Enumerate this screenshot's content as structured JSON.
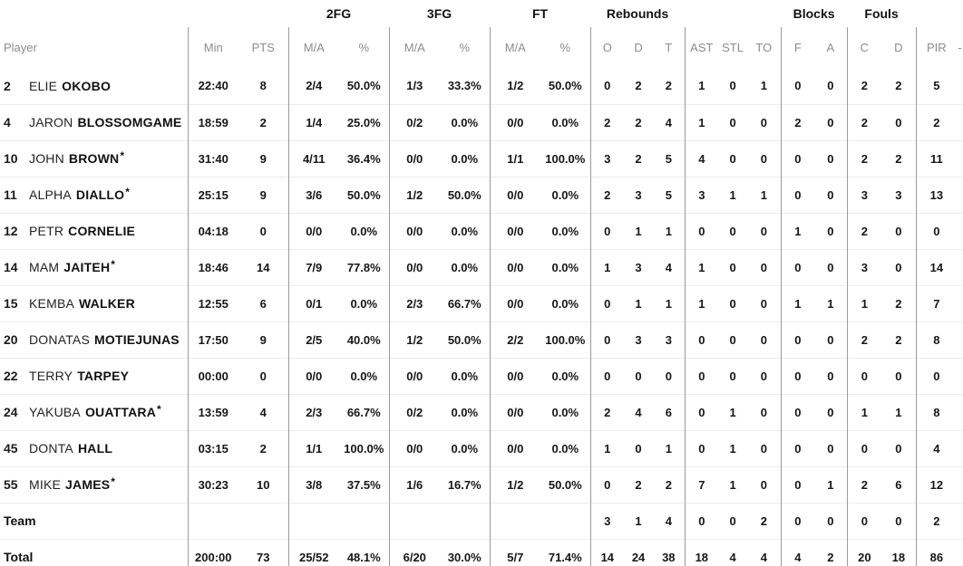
{
  "colors": {
    "background": "#ffffff",
    "group_header_text": "#131313",
    "column_header_text": "#8c8c8c",
    "data_text": "#161616",
    "section_divider": "#9b9b9b",
    "row_divider": "#ececec"
  },
  "table": {
    "group_headers": {
      "fg2": "2FG",
      "fg3": "3FG",
      "ft": "FT",
      "rebounds": "Rebounds",
      "blocks": "Blocks",
      "fouls": "Fouls"
    },
    "column_headers": {
      "player": "Player",
      "min": "Min",
      "pts": "PTS",
      "ma": "M/A",
      "pct": "%",
      "reb_o": "O",
      "reb_d": "D",
      "reb_t": "T",
      "ast": "AST",
      "stl": "STL",
      "to": "TO",
      "blk_f": "F",
      "blk_a": "A",
      "foul_c": "C",
      "foul_d": "D",
      "pir": "PIR",
      "overflow": "-"
    },
    "starter_mark": "*",
    "rows": [
      {
        "type": "player",
        "number": "2",
        "first": "ELIE",
        "last": "OKOBO",
        "starter": false,
        "min": "22:40",
        "pts": "8",
        "fg2_ma": "2/4",
        "fg2_pct": "50.0%",
        "fg3_ma": "1/3",
        "fg3_pct": "33.3%",
        "ft_ma": "1/2",
        "ft_pct": "50.0%",
        "reb_o": "0",
        "reb_d": "2",
        "reb_t": "2",
        "ast": "1",
        "stl": "0",
        "to": "1",
        "blk_f": "0",
        "blk_a": "0",
        "foul_c": "2",
        "foul_d": "2",
        "pir": "5"
      },
      {
        "type": "player",
        "number": "4",
        "first": "JARON",
        "last": "BLOSSOMGAME",
        "starter": false,
        "min": "18:59",
        "pts": "2",
        "fg2_ma": "1/4",
        "fg2_pct": "25.0%",
        "fg3_ma": "0/2",
        "fg3_pct": "0.0%",
        "ft_ma": "0/0",
        "ft_pct": "0.0%",
        "reb_o": "2",
        "reb_d": "2",
        "reb_t": "4",
        "ast": "1",
        "stl": "0",
        "to": "0",
        "blk_f": "2",
        "blk_a": "0",
        "foul_c": "2",
        "foul_d": "0",
        "pir": "2"
      },
      {
        "type": "player",
        "number": "10",
        "first": "JOHN",
        "last": "BROWN",
        "starter": true,
        "min": "31:40",
        "pts": "9",
        "fg2_ma": "4/11",
        "fg2_pct": "36.4%",
        "fg3_ma": "0/0",
        "fg3_pct": "0.0%",
        "ft_ma": "1/1",
        "ft_pct": "100.0%",
        "reb_o": "3",
        "reb_d": "2",
        "reb_t": "5",
        "ast": "4",
        "stl": "0",
        "to": "0",
        "blk_f": "0",
        "blk_a": "0",
        "foul_c": "2",
        "foul_d": "2",
        "pir": "11"
      },
      {
        "type": "player",
        "number": "11",
        "first": "ALPHA",
        "last": "DIALLO",
        "starter": true,
        "min": "25:15",
        "pts": "9",
        "fg2_ma": "3/6",
        "fg2_pct": "50.0%",
        "fg3_ma": "1/2",
        "fg3_pct": "50.0%",
        "ft_ma": "0/0",
        "ft_pct": "0.0%",
        "reb_o": "2",
        "reb_d": "3",
        "reb_t": "5",
        "ast": "3",
        "stl": "1",
        "to": "1",
        "blk_f": "0",
        "blk_a": "0",
        "foul_c": "3",
        "foul_d": "3",
        "pir": "13"
      },
      {
        "type": "player",
        "number": "12",
        "first": "PETR",
        "last": "CORNELIE",
        "starter": false,
        "min": "04:18",
        "pts": "0",
        "fg2_ma": "0/0",
        "fg2_pct": "0.0%",
        "fg3_ma": "0/0",
        "fg3_pct": "0.0%",
        "ft_ma": "0/0",
        "ft_pct": "0.0%",
        "reb_o": "0",
        "reb_d": "1",
        "reb_t": "1",
        "ast": "0",
        "stl": "0",
        "to": "0",
        "blk_f": "1",
        "blk_a": "0",
        "foul_c": "2",
        "foul_d": "0",
        "pir": "0"
      },
      {
        "type": "player",
        "number": "14",
        "first": "MAM",
        "last": "JAITEH",
        "starter": true,
        "min": "18:46",
        "pts": "14",
        "fg2_ma": "7/9",
        "fg2_pct": "77.8%",
        "fg3_ma": "0/0",
        "fg3_pct": "0.0%",
        "ft_ma": "0/0",
        "ft_pct": "0.0%",
        "reb_o": "1",
        "reb_d": "3",
        "reb_t": "4",
        "ast": "1",
        "stl": "0",
        "to": "0",
        "blk_f": "0",
        "blk_a": "0",
        "foul_c": "3",
        "foul_d": "0",
        "pir": "14"
      },
      {
        "type": "player",
        "number": "15",
        "first": "KEMBA",
        "last": "WALKER",
        "starter": false,
        "min": "12:55",
        "pts": "6",
        "fg2_ma": "0/1",
        "fg2_pct": "0.0%",
        "fg3_ma": "2/3",
        "fg3_pct": "66.7%",
        "ft_ma": "0/0",
        "ft_pct": "0.0%",
        "reb_o": "0",
        "reb_d": "1",
        "reb_t": "1",
        "ast": "1",
        "stl": "0",
        "to": "0",
        "blk_f": "1",
        "blk_a": "1",
        "foul_c": "1",
        "foul_d": "2",
        "pir": "7"
      },
      {
        "type": "player",
        "number": "20",
        "first": "DONATAS",
        "last": "MOTIEJUNAS",
        "starter": false,
        "min": "17:50",
        "pts": "9",
        "fg2_ma": "2/5",
        "fg2_pct": "40.0%",
        "fg3_ma": "1/2",
        "fg3_pct": "50.0%",
        "ft_ma": "2/2",
        "ft_pct": "100.0%",
        "reb_o": "0",
        "reb_d": "3",
        "reb_t": "3",
        "ast": "0",
        "stl": "0",
        "to": "0",
        "blk_f": "0",
        "blk_a": "0",
        "foul_c": "2",
        "foul_d": "2",
        "pir": "8"
      },
      {
        "type": "player",
        "number": "22",
        "first": "TERRY",
        "last": "TARPEY",
        "starter": false,
        "min": "00:00",
        "pts": "0",
        "fg2_ma": "0/0",
        "fg2_pct": "0.0%",
        "fg3_ma": "0/0",
        "fg3_pct": "0.0%",
        "ft_ma": "0/0",
        "ft_pct": "0.0%",
        "reb_o": "0",
        "reb_d": "0",
        "reb_t": "0",
        "ast": "0",
        "stl": "0",
        "to": "0",
        "blk_f": "0",
        "blk_a": "0",
        "foul_c": "0",
        "foul_d": "0",
        "pir": "0"
      },
      {
        "type": "player",
        "number": "24",
        "first": "YAKUBA",
        "last": "OUATTARA",
        "starter": true,
        "min": "13:59",
        "pts": "4",
        "fg2_ma": "2/3",
        "fg2_pct": "66.7%",
        "fg3_ma": "0/2",
        "fg3_pct": "0.0%",
        "ft_ma": "0/0",
        "ft_pct": "0.0%",
        "reb_o": "2",
        "reb_d": "4",
        "reb_t": "6",
        "ast": "0",
        "stl": "1",
        "to": "0",
        "blk_f": "0",
        "blk_a": "0",
        "foul_c": "1",
        "foul_d": "1",
        "pir": "8"
      },
      {
        "type": "player",
        "number": "45",
        "first": "DONTA",
        "last": "HALL",
        "starter": false,
        "min": "03:15",
        "pts": "2",
        "fg2_ma": "1/1",
        "fg2_pct": "100.0%",
        "fg3_ma": "0/0",
        "fg3_pct": "0.0%",
        "ft_ma": "0/0",
        "ft_pct": "0.0%",
        "reb_o": "1",
        "reb_d": "0",
        "reb_t": "1",
        "ast": "0",
        "stl": "1",
        "to": "0",
        "blk_f": "0",
        "blk_a": "0",
        "foul_c": "0",
        "foul_d": "0",
        "pir": "4"
      },
      {
        "type": "player",
        "number": "55",
        "first": "MIKE",
        "last": "JAMES",
        "starter": true,
        "min": "30:23",
        "pts": "10",
        "fg2_ma": "3/8",
        "fg2_pct": "37.5%",
        "fg3_ma": "1/6",
        "fg3_pct": "16.7%",
        "ft_ma": "1/2",
        "ft_pct": "50.0%",
        "reb_o": "0",
        "reb_d": "2",
        "reb_t": "2",
        "ast": "7",
        "stl": "1",
        "to": "0",
        "blk_f": "0",
        "blk_a": "1",
        "foul_c": "2",
        "foul_d": "6",
        "pir": "12"
      },
      {
        "type": "team",
        "label": "Team",
        "min": "",
        "pts": "",
        "fg2_ma": "",
        "fg2_pct": "",
        "fg3_ma": "",
        "fg3_pct": "",
        "ft_ma": "",
        "ft_pct": "",
        "reb_o": "3",
        "reb_d": "1",
        "reb_t": "4",
        "ast": "0",
        "stl": "0",
        "to": "2",
        "blk_f": "0",
        "blk_a": "0",
        "foul_c": "0",
        "foul_d": "0",
        "pir": "2"
      },
      {
        "type": "total",
        "label": "Total",
        "min": "200:00",
        "pts": "73",
        "fg2_ma": "25/52",
        "fg2_pct": "48.1%",
        "fg3_ma": "6/20",
        "fg3_pct": "30.0%",
        "ft_ma": "5/7",
        "ft_pct": "71.4%",
        "reb_o": "14",
        "reb_d": "24",
        "reb_t": "38",
        "ast": "18",
        "stl": "4",
        "to": "4",
        "blk_f": "4",
        "blk_a": "2",
        "foul_c": "20",
        "foul_d": "18",
        "pir": "86"
      }
    ]
  }
}
